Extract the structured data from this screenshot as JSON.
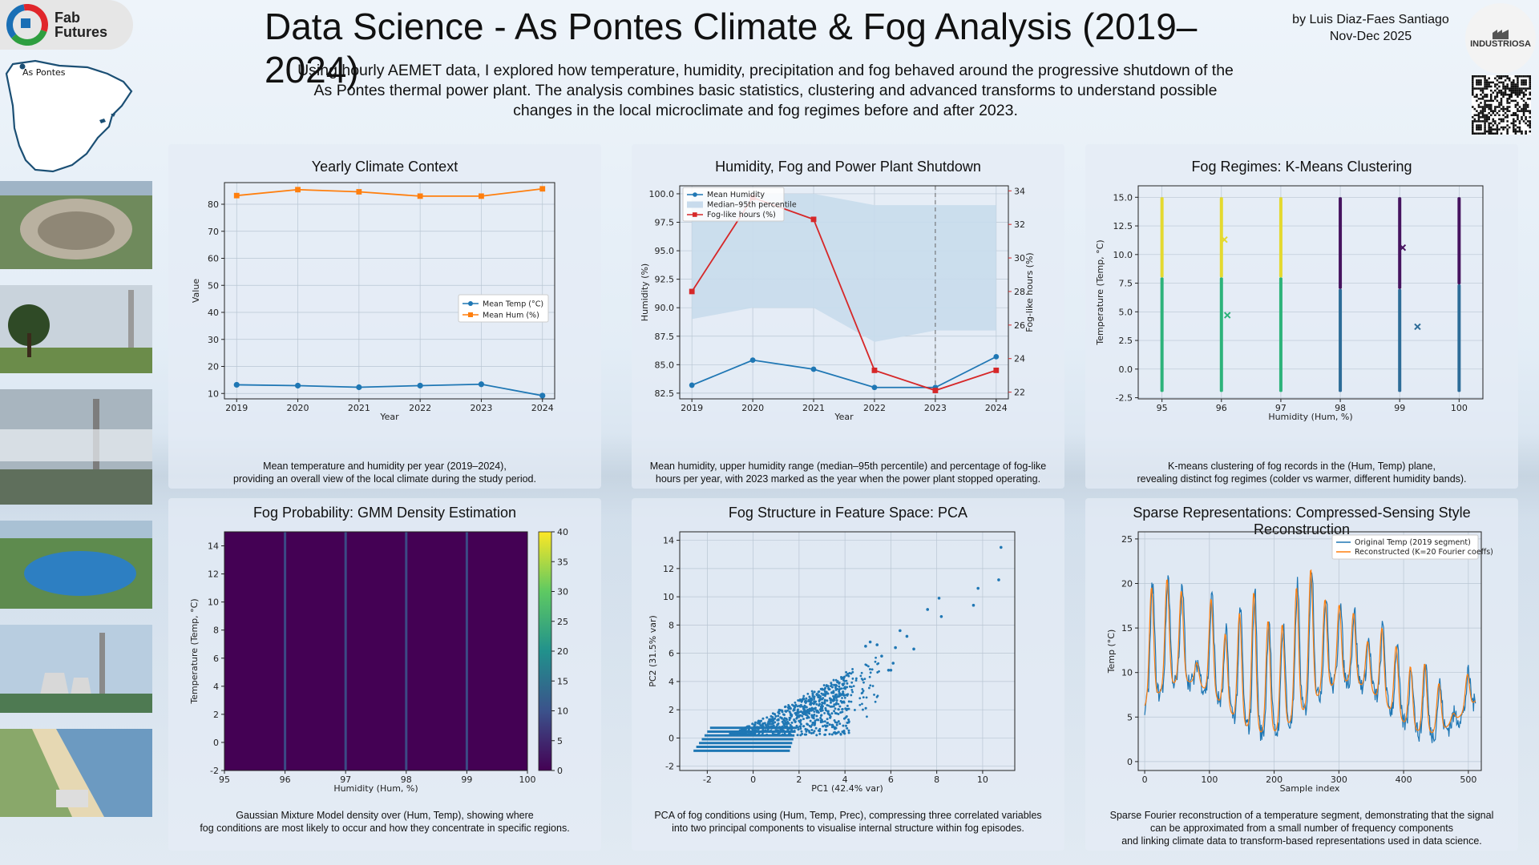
{
  "header": {
    "logo_text_line1": "Fab",
    "logo_text_line2": "Futures",
    "title": "Data Science - As Pontes Climate & Fog Analysis (2019–2024)",
    "author": "by Luis Diaz-Faes Santiago",
    "date": "Nov-Dec 2025",
    "partner_logo": "INDUSTRIOSA",
    "intro": "Using hourly AEMET data, I explored how temperature, humidity, precipitation and fog behaved around the progressive shutdown of the As Pontes thermal power plant. The analysis combines basic statistics, clustering and advanced transforms to understand possible changes in the local microclimate and fog regimes before and after 2023."
  },
  "map": {
    "label": "As Pontes"
  },
  "colors": {
    "blue": "#1f77b4",
    "orange": "#ff7f0e",
    "red": "#d62728",
    "band": "#c8dbec"
  },
  "panels": {
    "p1": {
      "title": "Yearly Climate Context",
      "caption_line1": "Mean temperature and humidity per year (2019–2024),",
      "caption_line2": "providing an overall view of the local climate during the study period."
    },
    "p2": {
      "title": "Humidity, Fog and Power Plant Shutdown",
      "caption_line1": "Mean humidity, upper humidity range (median–95th percentile) and percentage of fog-like",
      "caption_line2": "hours per year, with 2023 marked as the year when the power plant stopped operating."
    },
    "p3": {
      "title": "Fog Regimes: K-Means Clustering",
      "caption_line1": "K-means clustering of fog records in the (Hum, Temp) plane,",
      "caption_line2": "revealing distinct fog regimes (colder vs warmer, different humidity bands)."
    },
    "p4": {
      "title": "Fog Probability: GMM Density Estimation",
      "caption_line1": "Gaussian Mixture Model density over (Hum, Temp), showing where",
      "caption_line2": "fog conditions are most likely to occur and how they concentrate in specific regions."
    },
    "p5": {
      "title": "Fog Structure in Feature Space: PCA",
      "caption_line1": "PCA of fog conditions using (Hum, Temp, Prec), compressing three correlated variables",
      "caption_line2": "into two principal components to visualise internal structure within fog episodes."
    },
    "p6": {
      "title": "Sparse Representations: Compressed-Sensing Style Reconstruction",
      "caption_line1": "Sparse Fourier reconstruction of a temperature segment,  demonstrating that the signal",
      "caption_line2": "can be approximated from a small number of frequency components",
      "caption_line3": "and linking climate data to transform-based representations used in data science."
    }
  },
  "chart_data": [
    {
      "id": "yearly",
      "type": "line",
      "x": [
        2019,
        2020,
        2021,
        2022,
        2023,
        2024
      ],
      "xlabel": "Year",
      "ylabel": "Value",
      "ylim": [
        8,
        88
      ],
      "yticks": [
        10,
        20,
        30,
        40,
        50,
        60,
        70,
        80
      ],
      "series": [
        {
          "name": "Mean Temp (°C)",
          "values": [
            13.2,
            12.9,
            12.3,
            12.9,
            13.4,
            9.2
          ]
        },
        {
          "name": "Mean Hum (%)",
          "values": [
            83.2,
            85.4,
            84.6,
            83.0,
            83.0,
            85.7
          ]
        }
      ],
      "legend": "center-right"
    },
    {
      "id": "humfog",
      "type": "line",
      "x": [
        2019,
        2020,
        2021,
        2022,
        2023,
        2024
      ],
      "xlabel": "Year",
      "ylabel": "Humidity (%)",
      "y2label": "Fog-like hours (%)",
      "ylim": [
        82.0,
        100.7
      ],
      "yticks": [
        82.5,
        85.0,
        87.5,
        90.0,
        92.5,
        95.0,
        97.5,
        100.0
      ],
      "y2lim": [
        21.6,
        34.3
      ],
      "y2ticks": [
        22,
        24,
        26,
        28,
        30,
        32,
        34
      ],
      "series": [
        {
          "name": "Mean Humidity",
          "values": [
            83.2,
            85.4,
            84.6,
            83.0,
            83.0,
            85.7
          ]
        },
        {
          "name": "Median–95th percentile",
          "lower": [
            89,
            90,
            90,
            87,
            88,
            88
          ],
          "upper": [
            100,
            100,
            100,
            99,
            99,
            99
          ]
        },
        {
          "name": "Fog-like hours (%)",
          "values": [
            28.0,
            33.6,
            32.3,
            23.3,
            22.1,
            23.3
          ]
        }
      ],
      "marker_year": 2023,
      "legend": "top-left"
    },
    {
      "id": "kmeans",
      "type": "scatter",
      "xlabel": "Humidity (Hum, %)",
      "ylabel": "Temperature (Temp, °C)",
      "xlim": [
        94.6,
        100.4
      ],
      "ylim": [
        -2.6,
        16
      ],
      "xticks": [
        95,
        96,
        97,
        98,
        99,
        100
      ],
      "yticks": [
        -2.5,
        0.0,
        2.5,
        5.0,
        7.5,
        10.0,
        12.5,
        15.0
      ],
      "columns": [
        {
          "hum": 95,
          "segments": [
            {
              "cluster": "teal",
              "from": -2,
              "to": 8
            },
            {
              "cluster": "yellow",
              "from": 8,
              "to": 15
            }
          ]
        },
        {
          "hum": 96,
          "segments": [
            {
              "cluster": "teal",
              "from": -2,
              "to": 8
            },
            {
              "cluster": "yellow",
              "from": 8,
              "to": 15
            }
          ]
        },
        {
          "hum": 97,
          "segments": [
            {
              "cluster": "teal",
              "from": -2,
              "to": 8
            },
            {
              "cluster": "yellow",
              "from": 8,
              "to": 15
            }
          ]
        },
        {
          "hum": 98,
          "segments": [
            {
              "cluster": "navy",
              "from": -2,
              "to": 7
            },
            {
              "cluster": "purple",
              "from": 7,
              "to": 15
            }
          ]
        },
        {
          "hum": 99,
          "segments": [
            {
              "cluster": "navy",
              "from": -2,
              "to": 7
            },
            {
              "cluster": "purple",
              "from": 7,
              "to": 15
            }
          ]
        },
        {
          "hum": 100,
          "segments": [
            {
              "cluster": "navy",
              "from": -2,
              "to": 7.4
            },
            {
              "cluster": "purple",
              "from": 7.4,
              "to": 15
            }
          ]
        }
      ],
      "centroids": [
        {
          "cluster": "yellow",
          "hum": 96.05,
          "temp": 11.3
        },
        {
          "cluster": "teal",
          "hum": 96.1,
          "temp": 4.7
        },
        {
          "cluster": "purple",
          "hum": 99.05,
          "temp": 10.6
        },
        {
          "cluster": "navy",
          "hum": 99.3,
          "temp": 3.7
        }
      ],
      "cluster_colors": {
        "yellow": "#e4d92f",
        "teal": "#2db37a",
        "purple": "#46135f",
        "navy": "#2d6c98"
      }
    },
    {
      "id": "gmm",
      "type": "heatmap",
      "xlabel": "Humidity (Hum, %)",
      "ylabel": "Temperature (Temp, °C)",
      "xlim": [
        95,
        100
      ],
      "ylim": [
        -2,
        15
      ],
      "xticks": [
        95,
        96,
        97,
        98,
        99,
        100
      ],
      "yticks": [
        -2,
        0,
        2,
        4,
        6,
        8,
        10,
        12,
        14
      ],
      "colorbar_ticks": [
        0,
        5,
        10,
        15,
        20,
        25,
        30,
        35,
        40
      ],
      "colorbar_range": [
        0,
        40
      ],
      "ridges_at_hum": [
        96,
        97,
        98,
        99
      ]
    },
    {
      "id": "pca",
      "type": "scatter",
      "xlabel": "PC1 (42.4% var)",
      "ylabel": "PC2 (31.5% var)",
      "xlim": [
        -3.2,
        11.4
      ],
      "ylim": [
        -2.3,
        14.6
      ],
      "xticks": [
        -2,
        0,
        2,
        4,
        6,
        8,
        10
      ],
      "yticks": [
        -2,
        0,
        2,
        4,
        6,
        8,
        10,
        12,
        14
      ],
      "outliers": [
        [
          10.8,
          13.5
        ],
        [
          10.7,
          11.2
        ],
        [
          9.8,
          10.6
        ],
        [
          9.6,
          9.4
        ],
        [
          8.1,
          9.9
        ],
        [
          8.2,
          8.6
        ],
        [
          7.6,
          9.1
        ],
        [
          6.7,
          7.2
        ],
        [
          6.4,
          7.6
        ],
        [
          7.0,
          6.3
        ],
        [
          6.2,
          6.4
        ],
        [
          5.9,
          4.8
        ],
        [
          6.0,
          4.8
        ],
        [
          5.1,
          6.8
        ],
        [
          5.4,
          6.6
        ],
        [
          4.9,
          6.5
        ],
        [
          5.6,
          5.8
        ],
        [
          6.1,
          5.3
        ]
      ]
    },
    {
      "id": "sparse",
      "type": "line",
      "xlabel": "Sample index",
      "ylabel": "Temp (°C)",
      "xlim": [
        -10,
        520
      ],
      "ylim": [
        -1,
        25.8
      ],
      "xticks": [
        0,
        100,
        200,
        300,
        400,
        500
      ],
      "yticks": [
        0,
        5,
        10,
        15,
        20,
        25
      ],
      "series": [
        {
          "name": "Original Temp (2019 segment)"
        },
        {
          "name": "Reconstructed (K=20 Fourier coeffs)"
        }
      ],
      "n_samples": 512,
      "legend": "top-right"
    }
  ]
}
